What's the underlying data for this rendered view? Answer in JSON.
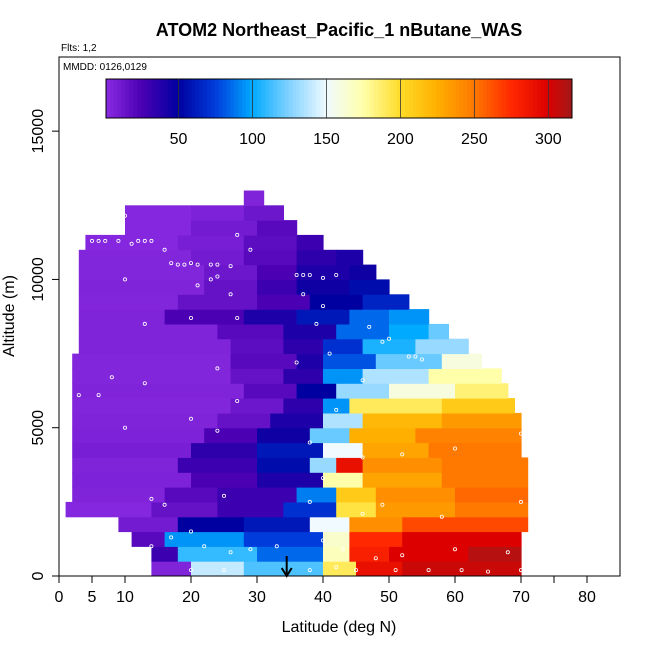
{
  "chart_data": {
    "type": "heatmap",
    "title": "ATOM2 Northeast_Pacific_1 nButane_WAS",
    "subtitle_flights": "Flts: 1,2",
    "subtitle_dates": "MMDD: 0126,0129",
    "xlabel": "Latitude (deg N)",
    "ylabel": "Altitude (m)",
    "xlim": [
      0,
      85
    ],
    "ylim": [
      0,
      17500
    ],
    "x_ticks": [
      0,
      5,
      10,
      20,
      30,
      40,
      50,
      60,
      70,
      80
    ],
    "y_ticks": [
      0,
      5000,
      10000,
      15000
    ],
    "colorbar": {
      "range": [
        1,
        316
      ],
      "ticks": [
        50,
        100,
        150,
        200,
        250,
        300
      ],
      "position": "top"
    },
    "arrow_marker": {
      "latitude": 34.5
    },
    "rows": [
      {
        "alt": 250,
        "segments": [
          [
            14,
            20,
            5
          ],
          [
            20,
            28,
            140
          ],
          [
            28,
            40,
            115
          ],
          [
            40,
            45,
            190
          ],
          [
            45,
            52,
            290
          ],
          [
            52,
            70,
            305
          ]
        ]
      },
      {
        "alt": 750,
        "segments": [
          [
            14,
            18,
            30
          ],
          [
            18,
            30,
            110
          ],
          [
            30,
            40,
            85
          ],
          [
            40,
            44,
            170
          ],
          [
            44,
            50,
            280
          ],
          [
            50,
            62,
            300
          ],
          [
            62,
            70,
            310
          ]
        ]
      },
      {
        "alt": 1250,
        "segments": [
          [
            11,
            16,
            20
          ],
          [
            16,
            28,
            95
          ],
          [
            28,
            40,
            75
          ],
          [
            40,
            44,
            165
          ],
          [
            44,
            52,
            275
          ],
          [
            52,
            70,
            300
          ]
        ]
      },
      {
        "alt": 1750,
        "segments": [
          [
            9,
            18,
            10
          ],
          [
            18,
            28,
            50
          ],
          [
            28,
            38,
            60
          ],
          [
            38,
            44,
            150
          ],
          [
            44,
            52,
            240
          ],
          [
            52,
            71,
            265
          ]
        ]
      },
      {
        "alt": 2250,
        "segments": [
          [
            1,
            14,
            3
          ],
          [
            14,
            24,
            15
          ],
          [
            24,
            34,
            30
          ],
          [
            34,
            42,
            70
          ],
          [
            42,
            48,
            195
          ],
          [
            48,
            60,
            235
          ],
          [
            60,
            71,
            250
          ]
        ]
      },
      {
        "alt": 2750,
        "segments": [
          [
            2,
            16,
            5
          ],
          [
            16,
            24,
            20
          ],
          [
            24,
            36,
            30
          ],
          [
            36,
            42,
            90
          ],
          [
            42,
            48,
            210
          ],
          [
            48,
            60,
            240
          ],
          [
            60,
            71,
            255
          ]
        ]
      },
      {
        "alt": 3250,
        "segments": [
          [
            2,
            20,
            6
          ],
          [
            20,
            30,
            25
          ],
          [
            30,
            40,
            40
          ],
          [
            40,
            46,
            175
          ],
          [
            46,
            58,
            230
          ],
          [
            58,
            71,
            250
          ]
        ]
      },
      {
        "alt": 3750,
        "segments": [
          [
            2,
            18,
            5
          ],
          [
            18,
            30,
            30
          ],
          [
            30,
            38,
            55
          ],
          [
            38,
            42,
            130
          ],
          [
            42,
            46,
            290
          ],
          [
            46,
            58,
            240
          ],
          [
            58,
            71,
            250
          ]
        ]
      },
      {
        "alt": 4250,
        "segments": [
          [
            2,
            20,
            8
          ],
          [
            20,
            30,
            35
          ],
          [
            30,
            40,
            60
          ],
          [
            40,
            46,
            150
          ],
          [
            46,
            56,
            230
          ],
          [
            56,
            70,
            250
          ]
        ]
      },
      {
        "alt": 4750,
        "segments": [
          [
            2,
            22,
            6
          ],
          [
            22,
            30,
            25
          ],
          [
            30,
            38,
            45
          ],
          [
            38,
            44,
            120
          ],
          [
            44,
            54,
            225
          ],
          [
            54,
            70,
            245
          ]
        ]
      },
      {
        "alt": 5250,
        "segments": [
          [
            2,
            24,
            5
          ],
          [
            24,
            32,
            15
          ],
          [
            32,
            40,
            40
          ],
          [
            40,
            46,
            135
          ],
          [
            46,
            58,
            220
          ],
          [
            58,
            70,
            235
          ]
        ]
      },
      {
        "alt": 5750,
        "segments": [
          [
            2,
            26,
            4
          ],
          [
            26,
            34,
            12
          ],
          [
            34,
            40,
            35
          ],
          [
            40,
            44,
            95
          ],
          [
            44,
            58,
            190
          ],
          [
            58,
            69,
            210
          ]
        ]
      },
      {
        "alt": 6250,
        "segments": [
          [
            2,
            28,
            5
          ],
          [
            28,
            36,
            20
          ],
          [
            36,
            42,
            50
          ],
          [
            42,
            50,
            130
          ],
          [
            50,
            60,
            160
          ],
          [
            60,
            68,
            185
          ]
        ]
      },
      {
        "alt": 6750,
        "segments": [
          [
            2,
            26,
            4
          ],
          [
            26,
            34,
            15
          ],
          [
            34,
            40,
            35
          ],
          [
            40,
            46,
            95
          ],
          [
            46,
            56,
            135
          ],
          [
            56,
            67,
            175
          ]
        ]
      },
      {
        "alt": 7250,
        "segments": [
          [
            2,
            26,
            4
          ],
          [
            26,
            36,
            20
          ],
          [
            36,
            40,
            40
          ],
          [
            40,
            48,
            80
          ],
          [
            48,
            58,
            120
          ],
          [
            58,
            64,
            160
          ]
        ]
      },
      {
        "alt": 7750,
        "segments": [
          [
            3,
            26,
            5
          ],
          [
            26,
            34,
            18
          ],
          [
            34,
            40,
            35
          ],
          [
            40,
            46,
            70
          ],
          [
            46,
            54,
            105
          ],
          [
            54,
            62,
            130
          ]
        ]
      },
      {
        "alt": 8250,
        "segments": [
          [
            3,
            24,
            5
          ],
          [
            24,
            34,
            20
          ],
          [
            34,
            42,
            40
          ],
          [
            42,
            50,
            85
          ],
          [
            50,
            56,
            100
          ],
          [
            56,
            59,
            120
          ]
        ]
      },
      {
        "alt": 8750,
        "segments": [
          [
            3,
            16,
            5
          ],
          [
            16,
            28,
            25
          ],
          [
            28,
            36,
            40
          ],
          [
            36,
            44,
            60
          ],
          [
            44,
            50,
            85
          ],
          [
            50,
            56,
            95
          ]
        ]
      },
      {
        "alt": 9250,
        "segments": [
          [
            3,
            18,
            4
          ],
          [
            18,
            30,
            15
          ],
          [
            30,
            38,
            25
          ],
          [
            38,
            46,
            50
          ],
          [
            46,
            53,
            65
          ]
        ]
      },
      {
        "alt": 9750,
        "segments": [
          [
            3,
            22,
            5
          ],
          [
            22,
            30,
            15
          ],
          [
            30,
            36,
            30
          ],
          [
            36,
            44,
            45
          ],
          [
            44,
            50,
            55
          ]
        ]
      },
      {
        "alt": 10250,
        "segments": [
          [
            3,
            22,
            4
          ],
          [
            22,
            30,
            12
          ],
          [
            30,
            36,
            25
          ],
          [
            36,
            44,
            40
          ],
          [
            44,
            48,
            45
          ]
        ]
      },
      {
        "alt": 10750,
        "segments": [
          [
            3,
            20,
            4
          ],
          [
            20,
            28,
            10
          ],
          [
            28,
            36,
            20
          ],
          [
            36,
            42,
            35
          ],
          [
            42,
            46,
            40
          ]
        ]
      },
      {
        "alt": 11250,
        "segments": [
          [
            4,
            18,
            3
          ],
          [
            18,
            28,
            8
          ],
          [
            28,
            36,
            18
          ],
          [
            36,
            40,
            30
          ]
        ]
      },
      {
        "alt": 11750,
        "segments": [
          [
            10,
            20,
            3
          ],
          [
            20,
            30,
            10
          ],
          [
            30,
            36,
            20
          ]
        ]
      },
      {
        "alt": 12250,
        "segments": [
          [
            10,
            20,
            3
          ],
          [
            20,
            28,
            6
          ],
          [
            28,
            34,
            12
          ]
        ]
      },
      {
        "alt": 12750,
        "segments": [
          [
            28,
            31,
            5
          ]
        ]
      }
    ],
    "sample_points": [
      [
        5,
        11300
      ],
      [
        6,
        11300
      ],
      [
        7,
        11300
      ],
      [
        9,
        11300
      ],
      [
        10,
        12150
      ],
      [
        11,
        11200
      ],
      [
        12,
        11300
      ],
      [
        13,
        11300
      ],
      [
        14,
        11300
      ],
      [
        16,
        11000
      ],
      [
        17,
        10550
      ],
      [
        18,
        10500
      ],
      [
        19,
        10500
      ],
      [
        20,
        10550
      ],
      [
        21,
        10500
      ],
      [
        23,
        10500
      ],
      [
        24,
        10500
      ],
      [
        26,
        10450
      ],
      [
        27,
        11500
      ],
      [
        29,
        11000
      ],
      [
        10,
        10000
      ],
      [
        23,
        10000
      ],
      [
        24,
        10100
      ],
      [
        21,
        9800
      ],
      [
        26,
        9500
      ],
      [
        36,
        10150
      ],
      [
        37,
        10150
      ],
      [
        38,
        10150
      ],
      [
        40,
        10050
      ],
      [
        42,
        10150
      ],
      [
        13,
        8500
      ],
      [
        20,
        8700
      ],
      [
        27,
        8700
      ],
      [
        37,
        9500
      ],
      [
        39,
        8500
      ],
      [
        40,
        9100
      ],
      [
        47,
        8400
      ],
      [
        50,
        8000
      ],
      [
        49,
        7900
      ],
      [
        53,
        7400
      ],
      [
        54,
        7400
      ],
      [
        55,
        7300
      ],
      [
        8,
        6700
      ],
      [
        13,
        6500
      ],
      [
        24,
        7000
      ],
      [
        36,
        7200
      ],
      [
        41,
        7500
      ],
      [
        46,
        6600
      ],
      [
        3,
        6100
      ],
      [
        6,
        6100
      ],
      [
        27,
        5900
      ],
      [
        42,
        5600
      ],
      [
        10,
        5000
      ],
      [
        20,
        5300
      ],
      [
        24,
        4900
      ],
      [
        38,
        4500
      ],
      [
        46,
        4000
      ],
      [
        52,
        4100
      ],
      [
        60,
        4300
      ],
      [
        70,
        4800
      ],
      [
        14,
        2600
      ],
      [
        16,
        2400
      ],
      [
        25,
        2700
      ],
      [
        38,
        2500
      ],
      [
        40,
        3300
      ],
      [
        46,
        2100
      ],
      [
        49,
        2400
      ],
      [
        58,
        2000
      ],
      [
        70,
        2500
      ],
      [
        7,
        1000
      ],
      [
        14,
        1000
      ],
      [
        17,
        1300
      ],
      [
        20,
        1500
      ],
      [
        22,
        1000
      ],
      [
        26,
        800
      ],
      [
        29,
        900
      ],
      [
        33,
        1000
      ],
      [
        40,
        1200
      ],
      [
        43,
        900
      ],
      [
        48,
        600
      ],
      [
        52,
        700
      ],
      [
        60,
        900
      ],
      [
        68,
        800
      ],
      [
        20,
        200
      ],
      [
        25,
        200
      ],
      [
        38,
        200
      ],
      [
        42,
        300
      ],
      [
        45,
        200
      ],
      [
        51,
        200
      ],
      [
        56,
        200
      ],
      [
        61,
        200
      ],
      [
        65,
        150
      ],
      [
        70,
        200
      ]
    ]
  }
}
